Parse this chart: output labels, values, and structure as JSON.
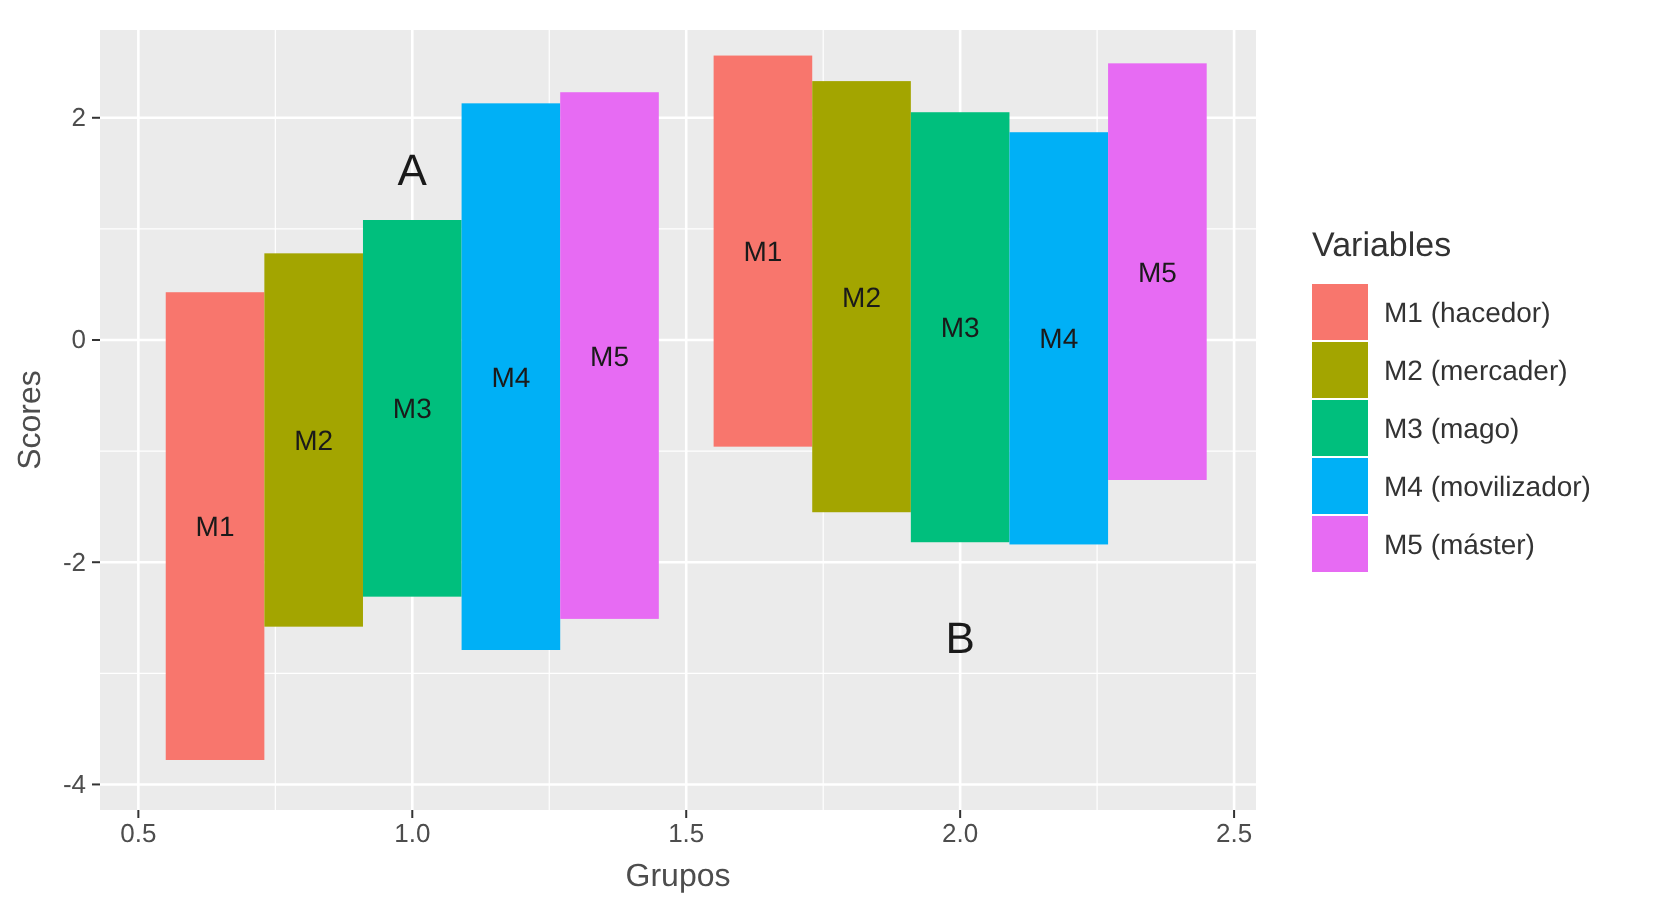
{
  "chart_data": {
    "type": "bar",
    "xlabel": "Grupos",
    "ylabel": "Scores",
    "legend_title": "Variables",
    "legend": "right",
    "grid": true,
    "xlim": [
      0.43,
      2.54
    ],
    "xticks": [
      0.5,
      {
        "value": 1,
        "label": "1.0"
      },
      1.5,
      {
        "value": 2,
        "label": "2.0"
      },
      2.5
    ],
    "ylim": [
      -4.23,
      2.79
    ],
    "yticks": [
      -4,
      -2,
      0,
      2
    ],
    "series": [
      {
        "name": "M1 (hacedor)",
        "color": "#f8766d",
        "x": [
          0.64,
          1.64
        ],
        "base": [
          -3.78,
          -0.96
        ],
        "values": [
          4.21,
          3.52
        ],
        "value_labels": [
          "M1",
          "M1"
        ]
      },
      {
        "name": "M2 (mercader)",
        "color": "#a3a500",
        "x": [
          0.82,
          1.82
        ],
        "base": [
          -2.58,
          -1.55
        ],
        "values": [
          3.36,
          3.88
        ],
        "value_labels": [
          "M2",
          "M2"
        ]
      },
      {
        "name": "M3 (mago)",
        "color": "#00bf7d",
        "x": [
          1.0,
          2.0
        ],
        "base": [
          -2.31,
          -1.82
        ],
        "values": [
          3.39,
          3.87
        ],
        "value_labels": [
          "M3",
          "M3"
        ]
      },
      {
        "name": "M4 (movilizador)",
        "color": "#00b0f6",
        "x": [
          1.18,
          2.18
        ],
        "base": [
          -2.79,
          -1.84
        ],
        "values": [
          4.92,
          3.71
        ],
        "value_labels": [
          "M4",
          "M4"
        ]
      },
      {
        "name": "M5 (máster)",
        "color": "#e76bf3",
        "x": [
          1.36,
          2.36
        ],
        "base": [
          -2.51,
          -1.26
        ],
        "values": [
          4.74,
          3.75
        ],
        "value_labels": [
          "M5",
          "M5"
        ]
      }
    ],
    "annotations": [
      "A",
      "B"
    ]
  }
}
